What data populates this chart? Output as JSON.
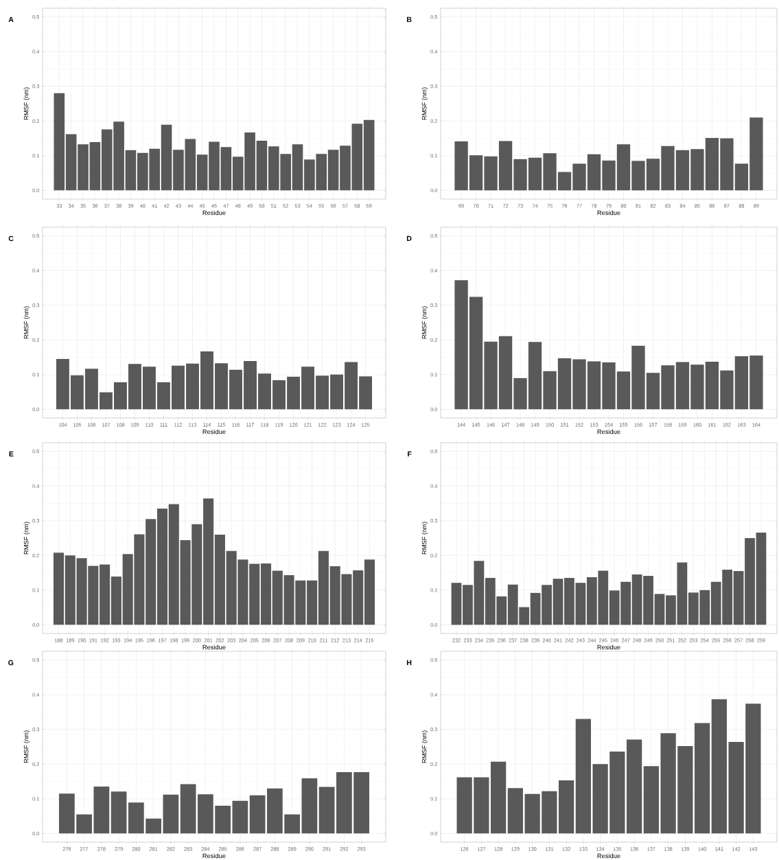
{
  "chart_data": [
    {
      "type": "bar",
      "title": "A",
      "xlabel": "Residue",
      "ylabel": "RMSF (nm)",
      "color": "#595959",
      "grid": true,
      "ylim": [
        -0.025,
        0.525
      ],
      "yticks": [
        {
          "value": 0,
          "label": "0.0"
        },
        {
          "value": 0.1,
          "label": "0.1"
        },
        {
          "value": 0.2,
          "label": "0.2"
        },
        {
          "value": 0.3,
          "label": "0.3"
        },
        {
          "value": 0.4,
          "label": "0.4"
        },
        {
          "value": 0.5,
          "label": "0.5"
        }
      ],
      "categories": [
        "33",
        "34",
        "35",
        "36",
        "37",
        "38",
        "39",
        "40",
        "41",
        "42",
        "43",
        "44",
        "45",
        "46",
        "47",
        "48",
        "49",
        "50",
        "51",
        "52",
        "53",
        "54",
        "55",
        "56",
        "57",
        "58",
        "59"
      ],
      "values": [
        0.28,
        0.162,
        0.133,
        0.139,
        0.176,
        0.198,
        0.116,
        0.108,
        0.12,
        0.189,
        0.117,
        0.148,
        0.103,
        0.14,
        0.125,
        0.097,
        0.167,
        0.143,
        0.127,
        0.105,
        0.133,
        0.089,
        0.105,
        0.117,
        0.129,
        0.192,
        0.203
      ]
    },
    {
      "type": "bar",
      "title": "B",
      "xlabel": "Residue",
      "ylabel": "RMSF (nm)",
      "color": "#595959",
      "grid": true,
      "ylim": [
        -0.025,
        0.525
      ],
      "yticks": [
        {
          "value": 0,
          "label": "0.0"
        },
        {
          "value": 0.1,
          "label": "0.1"
        },
        {
          "value": 0.2,
          "label": "0.2"
        },
        {
          "value": 0.3,
          "label": "0.3"
        },
        {
          "value": 0.4,
          "label": "0.4"
        },
        {
          "value": 0.5,
          "label": "0.5"
        }
      ],
      "categories": [
        "69",
        "70",
        "71",
        "72",
        "73",
        "74",
        "75",
        "76",
        "77",
        "78",
        "79",
        "80",
        "81",
        "82",
        "83",
        "84",
        "85",
        "86",
        "87",
        "88",
        "89"
      ],
      "values": [
        0.141,
        0.101,
        0.098,
        0.142,
        0.09,
        0.094,
        0.107,
        0.053,
        0.077,
        0.104,
        0.086,
        0.133,
        0.085,
        0.091,
        0.128,
        0.116,
        0.119,
        0.151,
        0.15,
        0.077,
        0.21
      ]
    },
    {
      "type": "bar",
      "title": "C",
      "xlabel": "Residue",
      "ylabel": "RMSF (nm)",
      "color": "#595959",
      "grid": true,
      "ylim": [
        -0.025,
        0.525
      ],
      "yticks": [
        {
          "value": 0,
          "label": "0.0"
        },
        {
          "value": 0.1,
          "label": "0.1"
        },
        {
          "value": 0.2,
          "label": "0.2"
        },
        {
          "value": 0.3,
          "label": "0.3"
        },
        {
          "value": 0.4,
          "label": "0.4"
        },
        {
          "value": 0.5,
          "label": "0.5"
        }
      ],
      "categories": [
        "104",
        "105",
        "106",
        "107",
        "108",
        "109",
        "110",
        "111",
        "112",
        "113",
        "114",
        "115",
        "116",
        "117",
        "118",
        "119",
        "120",
        "121",
        "122",
        "123",
        "124",
        "125"
      ],
      "values": [
        0.145,
        0.098,
        0.117,
        0.049,
        0.078,
        0.131,
        0.123,
        0.078,
        0.126,
        0.132,
        0.167,
        0.133,
        0.114,
        0.139,
        0.103,
        0.084,
        0.094,
        0.123,
        0.097,
        0.1,
        0.136,
        0.095
      ]
    },
    {
      "type": "bar",
      "title": "D",
      "xlabel": "Residue",
      "ylabel": "RMSF (nm)",
      "color": "#595959",
      "grid": true,
      "ylim": [
        -0.025,
        0.525
      ],
      "yticks": [
        {
          "value": 0,
          "label": "0.0"
        },
        {
          "value": 0.1,
          "label": "0.1"
        },
        {
          "value": 0.2,
          "label": "0.2"
        },
        {
          "value": 0.3,
          "label": "0.3"
        },
        {
          "value": 0.4,
          "label": "0.4"
        },
        {
          "value": 0.5,
          "label": "0.5"
        }
      ],
      "categories": [
        "144",
        "145",
        "146",
        "147",
        "148",
        "149",
        "150",
        "151",
        "152",
        "153",
        "154",
        "155",
        "156",
        "157",
        "158",
        "159",
        "160",
        "161",
        "162",
        "163",
        "164"
      ],
      "values": [
        0.372,
        0.324,
        0.195,
        0.211,
        0.09,
        0.194,
        0.11,
        0.147,
        0.144,
        0.138,
        0.135,
        0.109,
        0.183,
        0.105,
        0.127,
        0.136,
        0.129,
        0.137,
        0.112,
        0.153,
        0.155
      ]
    },
    {
      "type": "bar",
      "title": "E",
      "xlabel": "Residue",
      "ylabel": "RMSF (nm)",
      "color": "#595959",
      "grid": true,
      "ylim": [
        -0.025,
        0.525
      ],
      "yticks": [
        {
          "value": 0,
          "label": "0.0"
        },
        {
          "value": 0.1,
          "label": "0.1"
        },
        {
          "value": 0.2,
          "label": "0.2"
        },
        {
          "value": 0.3,
          "label": "0.3"
        },
        {
          "value": 0.4,
          "label": "0.4"
        },
        {
          "value": 0.5,
          "label": "0.5"
        }
      ],
      "categories": [
        "188",
        "189",
        "190",
        "191",
        "192",
        "193",
        "194",
        "195",
        "196",
        "197",
        "198",
        "199",
        "200",
        "201",
        "202",
        "203",
        "204",
        "205",
        "206",
        "207",
        "208",
        "209",
        "210",
        "211",
        "212",
        "213",
        "214",
        "215"
      ],
      "values": [
        0.208,
        0.2,
        0.192,
        0.17,
        0.174,
        0.139,
        0.204,
        0.261,
        0.305,
        0.335,
        0.348,
        0.244,
        0.29,
        0.364,
        0.26,
        0.213,
        0.188,
        0.176,
        0.177,
        0.156,
        0.143,
        0.128,
        0.128,
        0.213,
        0.169,
        0.146,
        0.157,
        0.188
      ]
    },
    {
      "type": "bar",
      "title": "F",
      "xlabel": "Residue",
      "ylabel": "RMSF (nm)",
      "color": "#595959",
      "grid": true,
      "ylim": [
        -0.025,
        0.525
      ],
      "yticks": [
        {
          "value": 0,
          "label": "0.0"
        },
        {
          "value": 0.1,
          "label": "0.1"
        },
        {
          "value": 0.2,
          "label": "0.2"
        },
        {
          "value": 0.3,
          "label": "0.3"
        },
        {
          "value": 0.4,
          "label": "0.4"
        },
        {
          "value": 0.5,
          "label": "0.5"
        }
      ],
      "categories": [
        "232",
        "233",
        "234",
        "235",
        "236",
        "237",
        "238",
        "239",
        "240",
        "241",
        "242",
        "243",
        "244",
        "245",
        "246",
        "247",
        "248",
        "249",
        "250",
        "251",
        "252",
        "253",
        "254",
        "255",
        "256",
        "257",
        "258",
        "259"
      ],
      "values": [
        0.121,
        0.115,
        0.184,
        0.135,
        0.082,
        0.116,
        0.051,
        0.092,
        0.115,
        0.133,
        0.135,
        0.121,
        0.137,
        0.156,
        0.099,
        0.124,
        0.145,
        0.141,
        0.089,
        0.085,
        0.18,
        0.093,
        0.1,
        0.124,
        0.159,
        0.155,
        0.25,
        0.266
      ]
    },
    {
      "type": "bar",
      "title": "G",
      "xlabel": "Residue",
      "ylabel": "RMSF (nm)",
      "color": "#595959",
      "grid": true,
      "ylim": [
        -0.025,
        0.525
      ],
      "yticks": [
        {
          "value": 0,
          "label": "0.0"
        },
        {
          "value": 0.1,
          "label": "0.1"
        },
        {
          "value": 0.2,
          "label": "0.2"
        },
        {
          "value": 0.3,
          "label": "0.3"
        },
        {
          "value": 0.4,
          "label": "0.4"
        },
        {
          "value": 0.5,
          "label": "0.5"
        }
      ],
      "categories": [
        "276",
        "277",
        "278",
        "279",
        "280",
        "281",
        "282",
        "283",
        "284",
        "285",
        "286",
        "287",
        "288",
        "289",
        "290",
        "291",
        "292",
        "293"
      ],
      "values": [
        0.115,
        0.055,
        0.135,
        0.121,
        0.089,
        0.043,
        0.112,
        0.142,
        0.113,
        0.08,
        0.094,
        0.11,
        0.13,
        0.055,
        0.159,
        0.134,
        0.177,
        0.177
      ]
    },
    {
      "type": "bar",
      "title": "H",
      "xlabel": "Residue",
      "ylabel": "RMSF (nm)",
      "color": "#595959",
      "grid": true,
      "ylim": [
        -0.025,
        0.525
      ],
      "yticks": [
        {
          "value": 0,
          "label": "0.0"
        },
        {
          "value": 0.1,
          "label": "0.1"
        },
        {
          "value": 0.2,
          "label": "0.2"
        },
        {
          "value": 0.3,
          "label": "0.3"
        },
        {
          "value": 0.4,
          "label": "0.4"
        },
        {
          "value": 0.5,
          "label": "0.5"
        }
      ],
      "categories": [
        "126",
        "127",
        "128",
        "129",
        "130",
        "131",
        "132",
        "133",
        "134",
        "135",
        "136",
        "137",
        "138",
        "139",
        "140",
        "141",
        "142",
        "143"
      ],
      "values": [
        0.162,
        0.162,
        0.207,
        0.131,
        0.114,
        0.122,
        0.153,
        0.33,
        0.2,
        0.236,
        0.271,
        0.194,
        0.289,
        0.252,
        0.318,
        0.387,
        0.264,
        0.374
      ]
    }
  ]
}
